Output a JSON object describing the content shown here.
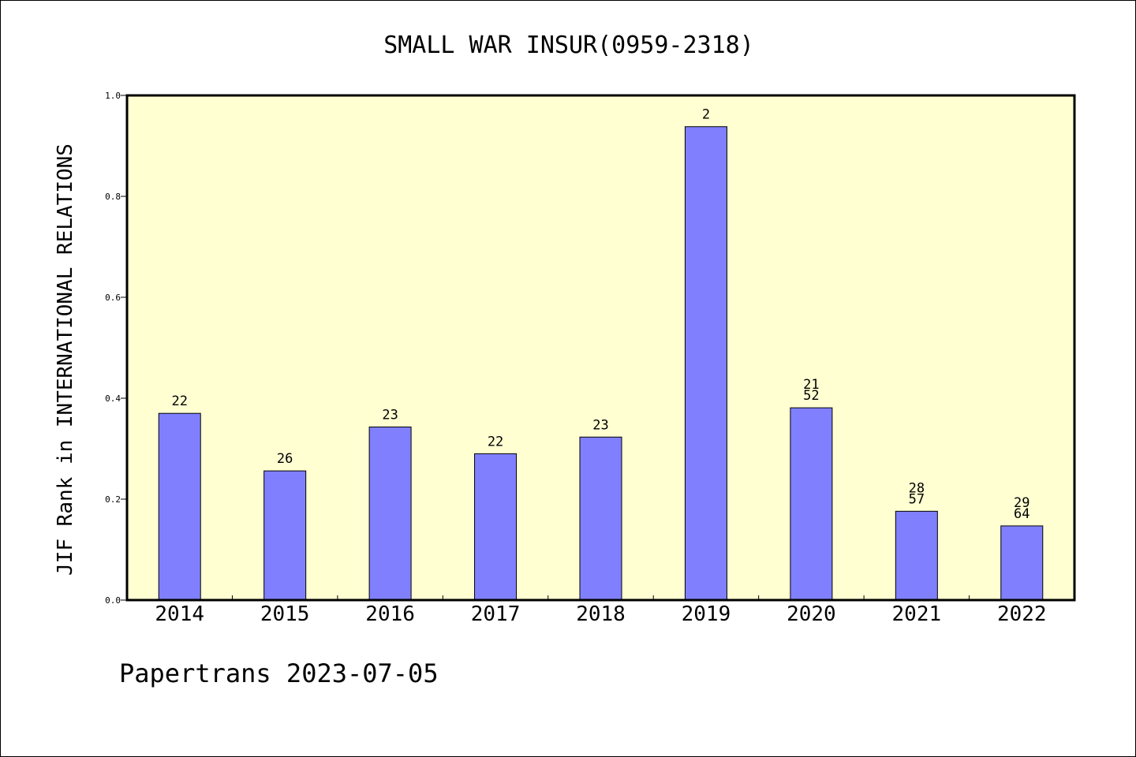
{
  "chart_data": {
    "type": "bar",
    "title": "SMALL WAR INSUR(0959-2318)",
    "xlabel": "",
    "ylabel": "JIF Rank in INTERNATIONAL RELATIONS",
    "categories": [
      "2014",
      "2015",
      "2016",
      "2017",
      "2018",
      "2019",
      "2020",
      "2021",
      "2022"
    ],
    "values": [
      0.37,
      0.256,
      0.343,
      0.29,
      0.323,
      0.938,
      0.381,
      0.176,
      0.147
    ],
    "bar_labels": [
      [
        "22"
      ],
      [
        "26"
      ],
      [
        "23"
      ],
      [
        "22"
      ],
      [
        "23"
      ],
      [
        "2"
      ],
      [
        "21",
        "52"
      ],
      [
        "28",
        "57"
      ],
      [
        "29",
        "64"
      ]
    ],
    "ylim": [
      0,
      1.0
    ],
    "yticks": [
      "0.0",
      "0.2",
      "0.4",
      "0.6",
      "0.8",
      "1.0"
    ],
    "grid": false,
    "colors": {
      "bar": "#8080ff",
      "plot_background": "#ffffd2"
    }
  },
  "footer": "Papertrans 2023-07-05"
}
